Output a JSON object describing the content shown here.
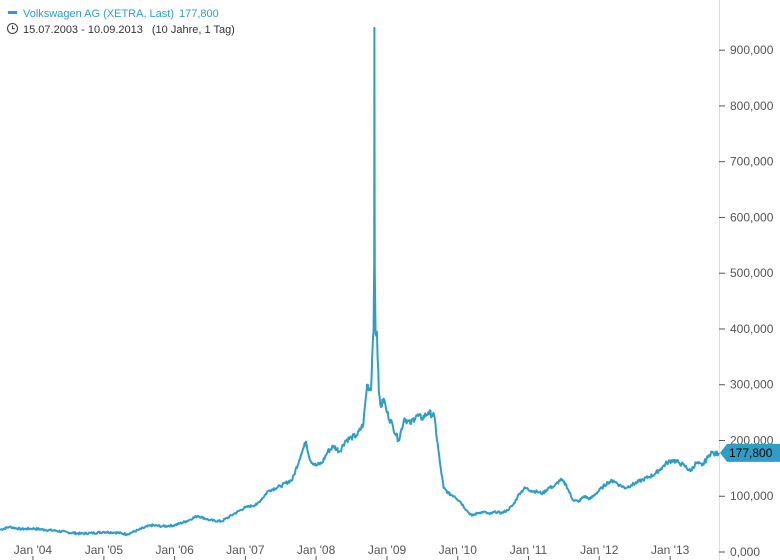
{
  "legend": {
    "series_label": "Volkswagen AG (XETRA, Last)",
    "last_value": "177,800",
    "date_range": "15.07.2003 - 10.09.2013",
    "period": "(10 Jahre, 1 Tag)",
    "clock_icon": "clock-icon"
  },
  "colors": {
    "series": "#2e9ec7",
    "axis": "#dddddd",
    "tick_text": "#555555",
    "legend_text": "#333333",
    "price_tag_bg": "#2e9ec7"
  },
  "chart_data": {
    "type": "line",
    "title": "",
    "xlabel": "",
    "ylabel": "",
    "x_range": [
      "2003-07-15",
      "2013-09-10"
    ],
    "ylim": [
      0,
      990000
    ],
    "y_ticks": [
      0,
      100000,
      200000,
      300000,
      400000,
      500000,
      600000,
      700000,
      800000,
      900000
    ],
    "y_tick_labels": [
      "0,000",
      "100,000",
      "200,000",
      "300,000",
      "400,000",
      "500,000",
      "600,000",
      "700,000",
      "800,000",
      "900,000"
    ],
    "x_ticks": [
      "2004-01-01",
      "2005-01-01",
      "2006-01-01",
      "2007-01-01",
      "2008-01-01",
      "2009-01-01",
      "2010-01-01",
      "2011-01-01",
      "2012-01-01",
      "2013-01-01"
    ],
    "x_tick_labels": [
      "Jan '04",
      "Jan '05",
      "Jan '06",
      "Jan '07",
      "Jan '08",
      "Jan '09",
      "Jan '10",
      "Jan '11",
      "Jan '12",
      "Jan '13"
    ],
    "grid": false,
    "legend_position": "top-left",
    "last_value": 177800,
    "last_value_label": "177,800",
    "series": [
      {
        "name": "Volkswagen AG (XETRA, Last)",
        "points": [
          [
            "2003-07-15",
            40000
          ],
          [
            "2003-09-01",
            45000
          ],
          [
            "2003-11-01",
            41000
          ],
          [
            "2004-01-01",
            42000
          ],
          [
            "2004-03-01",
            40000
          ],
          [
            "2004-05-01",
            38000
          ],
          [
            "2004-07-01",
            35000
          ],
          [
            "2004-09-01",
            33000
          ],
          [
            "2004-11-01",
            34000
          ],
          [
            "2005-01-01",
            36000
          ],
          [
            "2005-03-01",
            35000
          ],
          [
            "2005-05-01",
            32000
          ],
          [
            "2005-07-01",
            40000
          ],
          [
            "2005-09-01",
            48000
          ],
          [
            "2005-11-01",
            46000
          ],
          [
            "2006-01-01",
            48000
          ],
          [
            "2006-03-01",
            55000
          ],
          [
            "2006-05-01",
            65000
          ],
          [
            "2006-07-01",
            57000
          ],
          [
            "2006-09-01",
            55000
          ],
          [
            "2006-11-01",
            68000
          ],
          [
            "2007-01-01",
            80000
          ],
          [
            "2007-03-01",
            85000
          ],
          [
            "2007-05-01",
            110000
          ],
          [
            "2007-07-01",
            118000
          ],
          [
            "2007-09-01",
            130000
          ],
          [
            "2007-10-15",
            175000
          ],
          [
            "2007-11-10",
            198000
          ],
          [
            "2007-12-01",
            165000
          ],
          [
            "2008-01-01",
            155000
          ],
          [
            "2008-02-01",
            160000
          ],
          [
            "2008-03-01",
            180000
          ],
          [
            "2008-04-01",
            190000
          ],
          [
            "2008-05-01",
            180000
          ],
          [
            "2008-06-01",
            200000
          ],
          [
            "2008-07-01",
            205000
          ],
          [
            "2008-08-01",
            210000
          ],
          [
            "2008-09-01",
            230000
          ],
          [
            "2008-09-20",
            300000
          ],
          [
            "2008-10-10",
            290000
          ],
          [
            "2008-10-20",
            380000
          ],
          [
            "2008-10-24",
            400000
          ],
          [
            "2008-10-27",
            520000
          ],
          [
            "2008-10-28",
            940000
          ],
          [
            "2008-10-29",
            640000
          ],
          [
            "2008-10-30",
            500000
          ],
          [
            "2008-11-03",
            390000
          ],
          [
            "2008-11-10",
            395000
          ],
          [
            "2008-11-20",
            285000
          ],
          [
            "2008-12-01",
            260000
          ],
          [
            "2008-12-15",
            275000
          ],
          [
            "2009-01-01",
            250000
          ],
          [
            "2009-02-01",
            225000
          ],
          [
            "2009-03-01",
            200000
          ],
          [
            "2009-04-01",
            240000
          ],
          [
            "2009-05-01",
            230000
          ],
          [
            "2009-06-01",
            245000
          ],
          [
            "2009-07-01",
            240000
          ],
          [
            "2009-08-01",
            250000
          ],
          [
            "2009-09-01",
            245000
          ],
          [
            "2009-10-01",
            160000
          ],
          [
            "2009-10-20",
            115000
          ],
          [
            "2009-11-15",
            105000
          ],
          [
            "2009-12-15",
            100000
          ],
          [
            "2010-01-15",
            90000
          ],
          [
            "2010-02-15",
            75000
          ],
          [
            "2010-03-15",
            65000
          ],
          [
            "2010-04-15",
            70000
          ],
          [
            "2010-05-15",
            72000
          ],
          [
            "2010-06-15",
            68000
          ],
          [
            "2010-07-15",
            72000
          ],
          [
            "2010-08-15",
            70000
          ],
          [
            "2010-09-15",
            75000
          ],
          [
            "2010-10-15",
            85000
          ],
          [
            "2010-11-15",
            105000
          ],
          [
            "2010-12-15",
            115000
          ],
          [
            "2011-01-15",
            110000
          ],
          [
            "2011-02-15",
            108000
          ],
          [
            "2011-03-15",
            105000
          ],
          [
            "2011-04-15",
            115000
          ],
          [
            "2011-05-15",
            118000
          ],
          [
            "2011-06-15",
            130000
          ],
          [
            "2011-07-15",
            120000
          ],
          [
            "2011-08-15",
            95000
          ],
          [
            "2011-09-15",
            90000
          ],
          [
            "2011-10-15",
            100000
          ],
          [
            "2011-11-15",
            95000
          ],
          [
            "2011-12-15",
            105000
          ],
          [
            "2012-01-15",
            115000
          ],
          [
            "2012-02-15",
            125000
          ],
          [
            "2012-03-15",
            128000
          ],
          [
            "2012-04-15",
            120000
          ],
          [
            "2012-05-15",
            115000
          ],
          [
            "2012-06-15",
            120000
          ],
          [
            "2012-07-15",
            125000
          ],
          [
            "2012-08-15",
            130000
          ],
          [
            "2012-09-15",
            135000
          ],
          [
            "2012-10-15",
            140000
          ],
          [
            "2012-11-15",
            150000
          ],
          [
            "2012-12-15",
            160000
          ],
          [
            "2013-01-15",
            165000
          ],
          [
            "2013-02-15",
            160000
          ],
          [
            "2013-03-15",
            155000
          ],
          [
            "2013-04-15",
            145000
          ],
          [
            "2013-05-15",
            160000
          ],
          [
            "2013-06-15",
            155000
          ],
          [
            "2013-07-15",
            170000
          ],
          [
            "2013-08-01",
            180000
          ],
          [
            "2013-08-15",
            175000
          ],
          [
            "2013-09-10",
            177800
          ]
        ]
      }
    ]
  }
}
